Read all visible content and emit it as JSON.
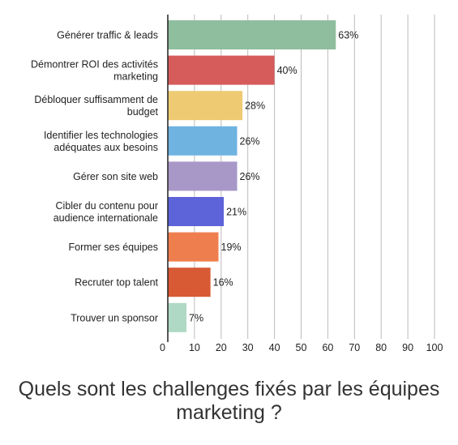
{
  "chart_data": {
    "type": "bar",
    "orientation": "horizontal",
    "categories": [
      [
        "Générer traffic & leads"
      ],
      [
        "Démontrer ROI des activités",
        "marketing"
      ],
      [
        "Débloquer suffisamment de",
        "budget"
      ],
      [
        "Identifier les technologies",
        "adéquates aux besoins"
      ],
      [
        "Gérer son site web"
      ],
      [
        "Cibler du contenu pour",
        "audience internationale"
      ],
      [
        "Former ses équipes"
      ],
      [
        "Recruter top talent"
      ],
      [
        "Trouver un sponsor"
      ]
    ],
    "values": [
      63,
      40,
      28,
      26,
      26,
      21,
      19,
      16,
      7
    ],
    "value_labels": [
      "63%",
      "40%",
      "28%",
      "26%",
      "26%",
      "21%",
      "19%",
      "16%",
      "7%"
    ],
    "colors": [
      "#8fbe9f",
      "#d65c5c",
      "#eecb72",
      "#6fb3e1",
      "#a898c8",
      "#5d63d9",
      "#ef7e4e",
      "#d75a34",
      "#afd9c4"
    ],
    "xlim": [
      0,
      100
    ],
    "xticks": [
      0,
      10,
      20,
      30,
      40,
      50,
      60,
      70,
      80,
      90,
      100
    ],
    "xtick_labels": [
      "0",
      "10",
      "20",
      "30",
      "40",
      "50",
      "60",
      "70",
      "80",
      "90",
      "100"
    ],
    "grid": "vertical",
    "title": "",
    "xlabel": "",
    "ylabel": ""
  },
  "caption": "Quels sont les challenges fixés par les équipes marketing ?"
}
